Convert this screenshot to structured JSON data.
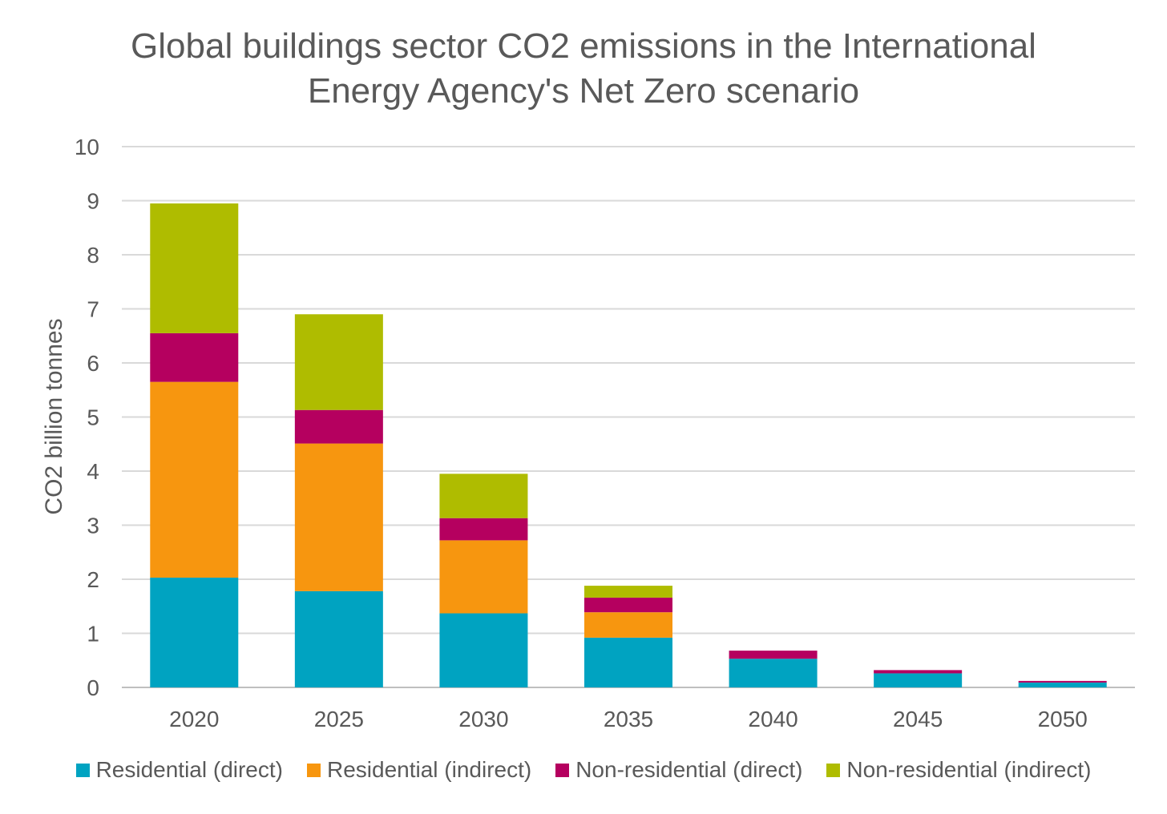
{
  "chart_data": {
    "type": "bar",
    "stacked": true,
    "title_lines": [
      "Global buildings sector CO2 emissions in the International",
      "Energy Agency's Net Zero scenario"
    ],
    "ylabel": "CO2 billion tonnes",
    "xlabel": "",
    "ylim": [
      0,
      10
    ],
    "yticks": [
      "0",
      "1",
      "2",
      "3",
      "4",
      "5",
      "6",
      "7",
      "8",
      "9",
      "10"
    ],
    "grid": true,
    "legend_position": "bottom",
    "categories": [
      "2020",
      "2025",
      "2030",
      "2035",
      "2040",
      "2045",
      "2050"
    ],
    "series": [
      {
        "name": "Residential (direct)",
        "color": "#00A3C1",
        "values": [
          2.03,
          1.78,
          1.37,
          0.92,
          0.53,
          0.26,
          0.09
        ]
      },
      {
        "name": "Residential (indirect)",
        "color": "#F7960F",
        "values": [
          3.62,
          2.73,
          1.35,
          0.47,
          0.0,
          0.0,
          0.0
        ]
      },
      {
        "name": "Non-residential (direct)",
        "color": "#B5005F",
        "values": [
          0.9,
          0.62,
          0.41,
          0.27,
          0.15,
          0.06,
          0.03
        ]
      },
      {
        "name": "Non-residential (indirect)",
        "color": "#AFBC00",
        "values": [
          2.4,
          1.77,
          0.82,
          0.22,
          0.0,
          0.0,
          0.0
        ]
      }
    ]
  }
}
